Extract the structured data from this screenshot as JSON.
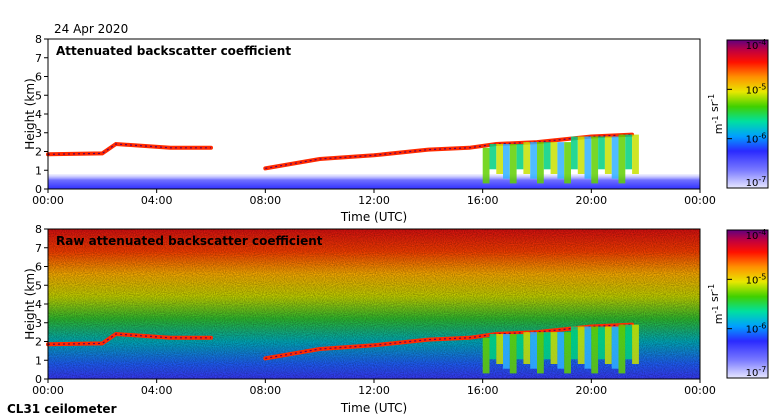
{
  "header": {
    "date": "24 Apr 2020"
  },
  "footer": {
    "instrument": "CL31 ceilometer"
  },
  "chart_data": [
    {
      "type": "heatmap",
      "title": "Attenuated backscatter coefficient",
      "xlabel": "Time (UTC)",
      "ylabel": "Height (km)",
      "xlim": [
        0,
        24
      ],
      "ylim": [
        0,
        8
      ],
      "x_ticks": [
        "00:00",
        "04:00",
        "08:00",
        "12:00",
        "16:00",
        "20:00",
        "00:00"
      ],
      "y_ticks": [
        "0",
        "1",
        "2",
        "3",
        "4",
        "5",
        "6",
        "7",
        "8"
      ],
      "colorbar": {
        "ticks": [
          "10-7",
          "10-6",
          "10-5",
          "10-4"
        ],
        "unit": "m-1 sr-1",
        "min_exp": -7,
        "max_exp": -4
      },
      "cloud_base_km": [
        {
          "t": 0.0,
          "h": 1.85
        },
        {
          "t": 2.0,
          "h": 1.9
        },
        {
          "t": 2.5,
          "h": 2.4
        },
        {
          "t": 4.5,
          "h": 2.2
        },
        {
          "t": 6.0,
          "h": 2.2
        },
        {
          "t": 7.5,
          "h": null
        },
        {
          "t": 8.0,
          "h": 1.1
        },
        {
          "t": 10.0,
          "h": 1.6
        },
        {
          "t": 12.0,
          "h": 1.8
        },
        {
          "t": 14.0,
          "h": 2.1
        },
        {
          "t": 15.5,
          "h": 2.2
        },
        {
          "t": 16.5,
          "h": 2.4
        },
        {
          "t": 18.0,
          "h": 2.5
        },
        {
          "t": 20.0,
          "h": 2.8
        },
        {
          "t": 21.5,
          "h": 2.9
        }
      ]
    },
    {
      "type": "heatmap",
      "title": "Raw attenuated backscatter coefficient",
      "xlabel": "Time (UTC)",
      "ylabel": "Height (km)",
      "xlim": [
        0,
        24
      ],
      "ylim": [
        0,
        8
      ],
      "x_ticks": [
        "00:00",
        "04:00",
        "08:00",
        "12:00",
        "16:00",
        "20:00",
        "00:00"
      ],
      "y_ticks": [
        "0",
        "1",
        "2",
        "3",
        "4",
        "5",
        "6",
        "7",
        "8"
      ],
      "colorbar": {
        "ticks": [
          "10-7",
          "10-6",
          "10-5",
          "10-4"
        ],
        "unit": "m-1 sr-1",
        "min_exp": -7,
        "max_exp": -4
      }
    }
  ]
}
